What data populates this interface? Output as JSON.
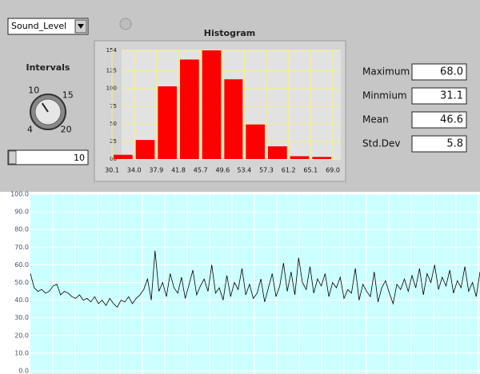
{
  "selector": "Sound_Level",
  "knob": {
    "label": "Intervals",
    "ticks": [
      4,
      10,
      15,
      20
    ],
    "value": 10
  },
  "histogram": {
    "type": "bar",
    "title": "Histogram",
    "color": "#ff0000",
    "bins": [
      30.1,
      34.0,
      37.9,
      41.8,
      45.7,
      49.6,
      53.4,
      57.3,
      61.2,
      65.1,
      69.0
    ],
    "xticks": [
      30.1,
      {
        "value": 34,
        "label": "34.0"
      },
      37.9,
      41.8,
      45.7,
      49.6,
      53.4,
      57.3,
      61.2,
      65.1,
      {
        "value": 69,
        "label": "69.0"
      }
    ],
    "values": [
      6,
      27,
      103,
      141,
      154,
      113,
      49,
      18,
      4,
      3
    ],
    "ylim": [
      0,
      154
    ],
    "yticks": [
      {
        "value": 0,
        "label": "00"
      },
      25,
      50,
      75,
      100,
      125,
      154
    ],
    "grid": true
  },
  "stats": [
    {
      "label": "Maximum",
      "value": "68.0"
    },
    {
      "label": "Minmium",
      "value": "31.1"
    },
    {
      "label": "Mean",
      "value": "46.6"
    },
    {
      "label": "Std.Dev",
      "value": "5.8"
    }
  ],
  "waveform": {
    "type": "line",
    "color": "#000000",
    "ylim": [
      0,
      100
    ],
    "yticks": [
      {
        "value": 0,
        "label": "0.0"
      },
      {
        "value": 10,
        "label": "10.0"
      },
      {
        "value": 20,
        "label": "20.0"
      },
      {
        "value": 30,
        "label": "30.0"
      },
      {
        "value": 40,
        "label": "40.0"
      },
      {
        "value": 50,
        "label": "50.0"
      },
      {
        "value": 60,
        "label": "60.0"
      },
      {
        "value": 70,
        "label": "70.0"
      },
      {
        "value": 80,
        "label": "80.0"
      },
      {
        "value": 90,
        "label": "90.0"
      },
      {
        "value": 100,
        "label": "100.0"
      }
    ],
    "grid": true,
    "values": [
      55,
      47,
      45,
      46,
      44,
      45,
      48,
      49,
      43,
      45,
      44,
      42,
      41,
      43,
      40,
      41,
      39,
      42,
      38,
      40,
      37,
      41,
      38,
      36,
      40,
      39,
      42,
      38,
      41,
      43,
      46,
      52,
      40,
      68,
      45,
      50,
      42,
      55,
      47,
      44,
      53,
      41,
      49,
      57,
      43,
      48,
      52,
      45,
      60,
      44,
      47,
      40,
      54,
      42,
      50,
      46,
      58,
      43,
      49,
      41,
      44,
      52,
      39,
      47,
      55,
      42,
      48,
      61,
      45,
      56,
      43,
      64,
      50,
      46,
      59,
      44,
      52,
      48,
      55,
      42,
      50,
      47,
      53,
      41,
      46,
      44,
      58,
      40,
      49,
      45,
      42,
      56,
      39,
      47,
      51,
      44,
      38,
      49,
      46,
      52,
      45,
      54,
      47,
      58,
      43,
      55,
      50,
      60,
      46,
      53,
      48,
      57,
      44,
      51,
      47,
      59,
      45,
      50,
      42,
      56
    ]
  }
}
